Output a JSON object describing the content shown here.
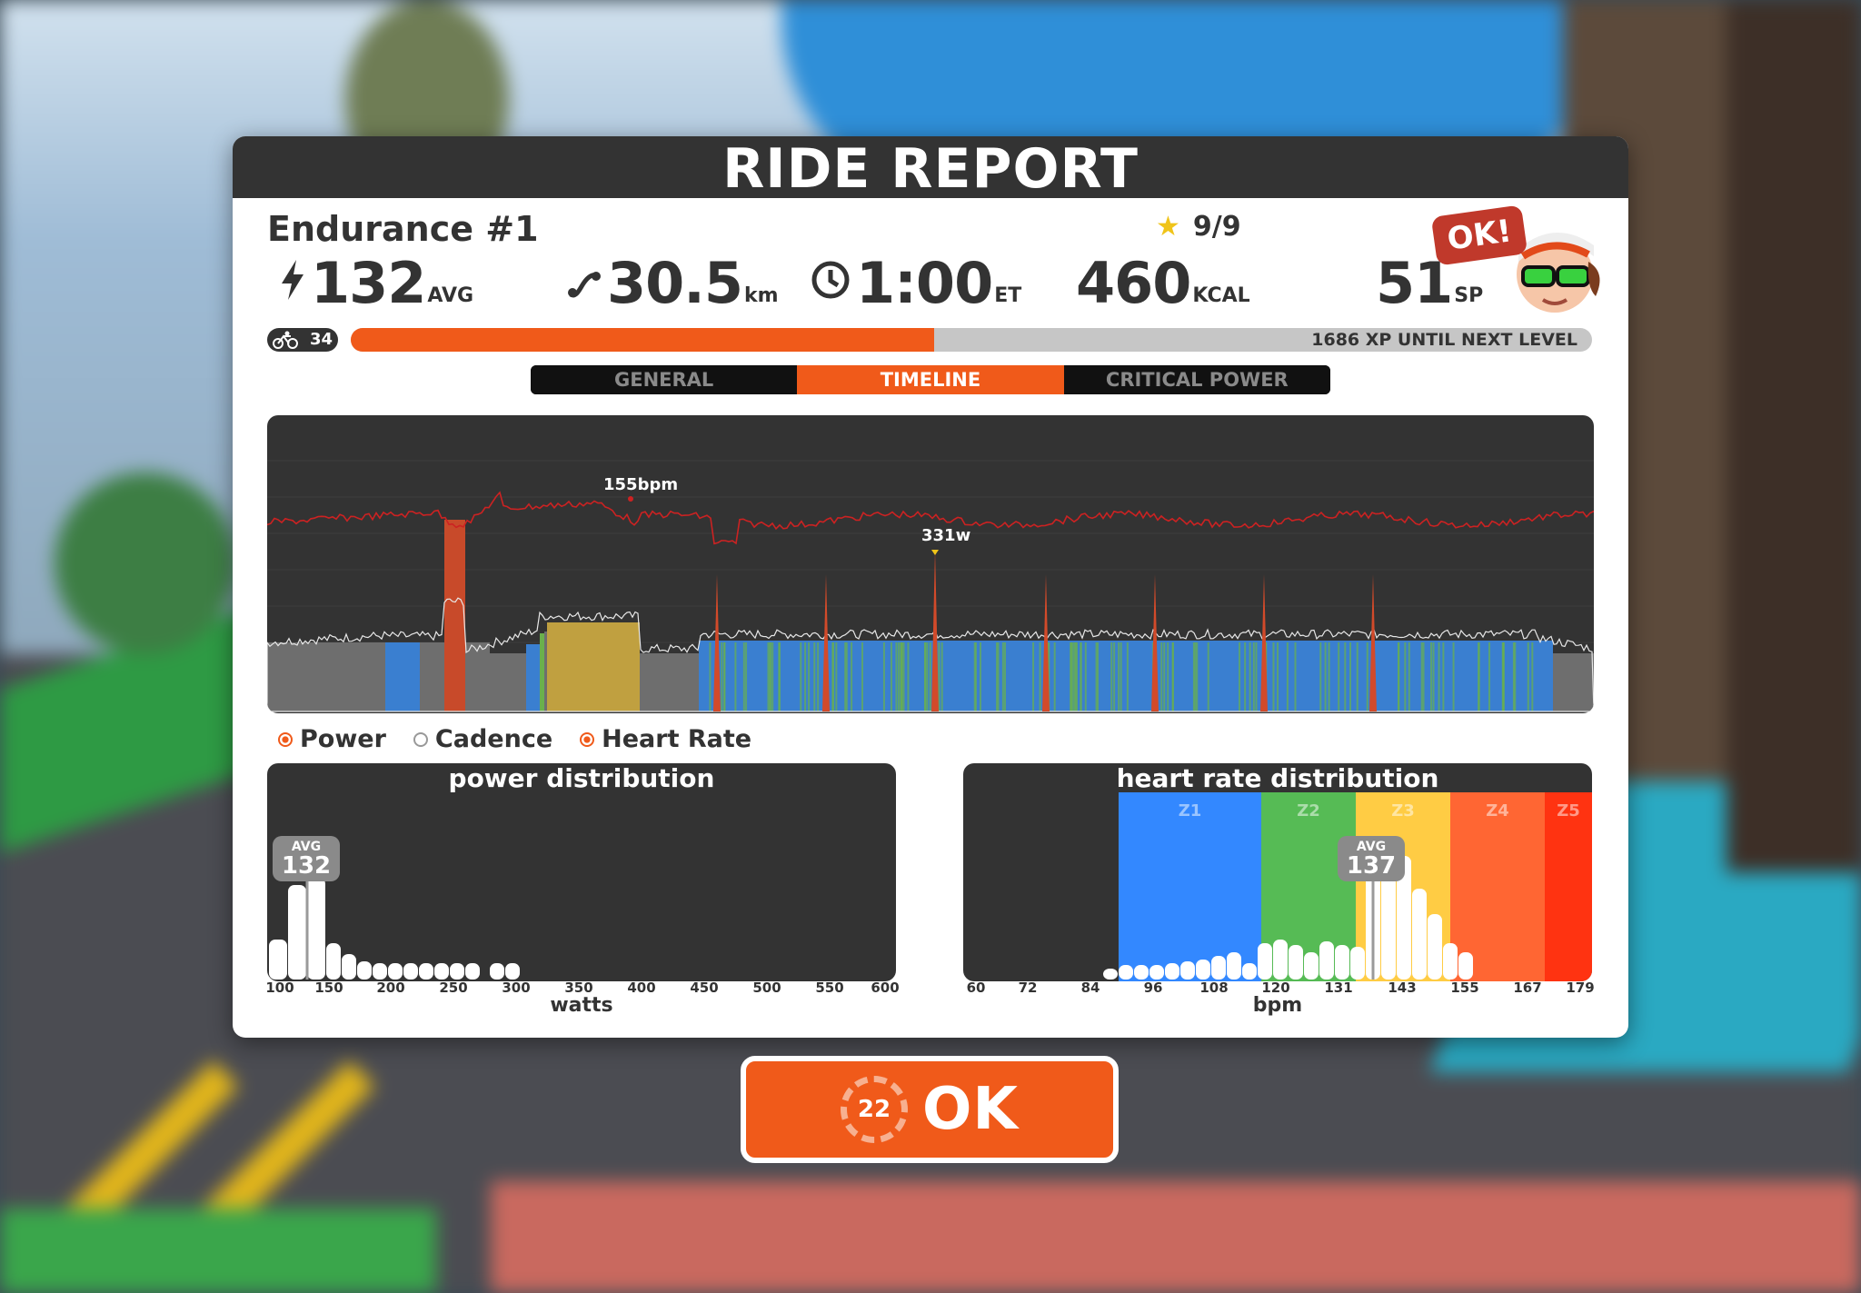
{
  "header": {
    "title": "RIDE REPORT"
  },
  "workout": {
    "name": "Endurance #1",
    "stars": "9/9"
  },
  "stats": {
    "power": {
      "value": "132",
      "unit": "AVG"
    },
    "distance": {
      "value": "30.5",
      "unit": "km"
    },
    "time": {
      "value": "1:00",
      "unit": "ET"
    },
    "calories": {
      "value": "460",
      "unit": "KCAL"
    },
    "sport_points": {
      "value": "51",
      "unit": "SP"
    }
  },
  "avatar": {
    "bubble": "OK!"
  },
  "level": {
    "value": "34",
    "xp_text": "1686 XP UNTIL NEXT LEVEL",
    "progress": 0.47
  },
  "tabs": [
    {
      "label": "GENERAL",
      "active": false
    },
    {
      "label": "TIMELINE",
      "active": true
    },
    {
      "label": "CRITICAL POWER",
      "active": false
    }
  ],
  "timeline": {
    "hr_peak_label": "155bpm",
    "power_peak_label": "331w"
  },
  "legend": [
    {
      "label": "Power",
      "checked": true
    },
    {
      "label": "Cadence",
      "checked": false
    },
    {
      "label": "Heart Rate",
      "checked": true
    }
  ],
  "power_distribution": {
    "title": "power distribution",
    "axis_label": "watts",
    "ticks": [
      "100",
      "150",
      "200",
      "250",
      "300",
      "350",
      "400",
      "450",
      "500",
      "550",
      "600"
    ],
    "avg_label": "AVG",
    "avg_value": "132"
  },
  "hr_distribution": {
    "title": "heart rate distribution",
    "axis_label": "bpm",
    "ticks": [
      "60",
      "72",
      "84",
      "96",
      "108",
      "120",
      "131",
      "143",
      "155",
      "167",
      "179"
    ],
    "zones": [
      "Z1",
      "Z2",
      "Z3",
      "Z4",
      "Z5"
    ],
    "avg_label": "AVG",
    "avg_value": "137"
  },
  "ok_button": {
    "countdown": "22",
    "label": "OK"
  },
  "colors": {
    "accent": "#f05a1a",
    "zone1": "#3388ff",
    "zone2": "#56bb55",
    "zone3": "#ffcc44",
    "zone4": "#ff6633",
    "zone5": "#ff3311",
    "hr_line": "#cc2222"
  }
}
